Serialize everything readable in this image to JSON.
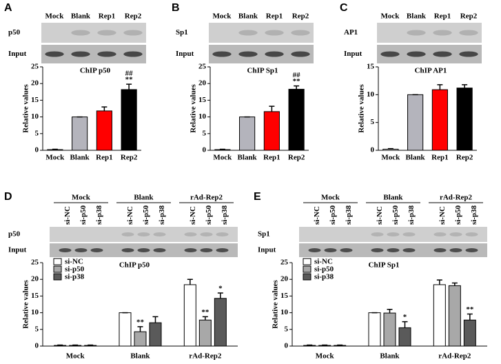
{
  "chart_data": [
    {
      "type": "bar",
      "panel": "A",
      "title": "ChIP p50",
      "y_label": "Relative values",
      "gel": {
        "lanes": [
          "Mock",
          "Blank",
          "Rep1",
          "Rep2"
        ],
        "rows": [
          "p50",
          "Input"
        ]
      },
      "categories": [
        "Mock",
        "Blank",
        "Rep1",
        "Rep2"
      ],
      "values": [
        0.2,
        10,
        11.8,
        18.2
      ],
      "errors": [
        0.1,
        0,
        1.2,
        1.6
      ],
      "colors": [
        "#ffffff",
        "#b4b4bc",
        "#ff0000",
        "#000000"
      ],
      "annotations": [
        null,
        null,
        null,
        [
          "##",
          "**"
        ]
      ],
      "ylim": [
        0,
        25
      ],
      "yticks": [
        0,
        5,
        10,
        15,
        20,
        25
      ]
    },
    {
      "type": "bar",
      "panel": "B",
      "title": "ChIP Sp1",
      "y_label": "Relative values",
      "gel": {
        "lanes": [
          "Mock",
          "Blank",
          "Rep1",
          "Rep2"
        ],
        "rows": [
          "Sp1",
          "Input"
        ]
      },
      "categories": [
        "Mock",
        "Blank",
        "Rep1",
        "Rep2"
      ],
      "values": [
        0.2,
        10,
        11.6,
        18.3
      ],
      "errors": [
        0.1,
        0,
        1.6,
        1.0
      ],
      "colors": [
        "#ffffff",
        "#b4b4bc",
        "#ff0000",
        "#000000"
      ],
      "annotations": [
        null,
        null,
        null,
        [
          "##",
          "**"
        ]
      ],
      "ylim": [
        0,
        25
      ],
      "yticks": [
        0,
        5,
        10,
        15,
        20,
        25
      ]
    },
    {
      "type": "bar",
      "panel": "C",
      "title": "ChIP AP1",
      "y_label": "Relative values",
      "gel": {
        "lanes": [
          "Mock",
          "Blank",
          "Rep1",
          "Rep2"
        ],
        "rows": [
          "AP1",
          "Input"
        ]
      },
      "categories": [
        "Mock",
        "Blank",
        "Rep1",
        "Rep2"
      ],
      "values": [
        0.2,
        10,
        10.9,
        11.2
      ],
      "errors": [
        0.1,
        0,
        0.9,
        0.6
      ],
      "colors": [
        "#ffffff",
        "#b4b4bc",
        "#ff0000",
        "#000000"
      ],
      "ylim": [
        0,
        15
      ],
      "yticks": [
        0,
        5,
        10,
        15
      ]
    },
    {
      "type": "grouped_bar",
      "panel": "D",
      "title": "ChIP p50",
      "y_label": "Relative values",
      "gel": {
        "groups": [
          "Mock",
          "Blank",
          "rAd-Rep2"
        ],
        "lanes": [
          "si-NC",
          "si-p50",
          "si-p38",
          "si-NC",
          "si-p50",
          "si-p38",
          "si-NC",
          "si-p50",
          "si-p38"
        ],
        "rows": [
          "p50",
          "Input"
        ]
      },
      "categories": [
        "Mock",
        "Blank",
        "rAd-Rep2"
      ],
      "series": [
        {
          "name": "si-NC",
          "color": "#ffffff",
          "values": [
            0.2,
            10,
            18.4
          ],
          "errors": [
            0.1,
            0,
            1.6
          ]
        },
        {
          "name": "si-p50",
          "color": "#a8a8a8",
          "values": [
            0.2,
            4.3,
            7.8
          ],
          "errors": [
            0.1,
            1.5,
            1.0
          ],
          "annotations": [
            null,
            [
              "**"
            ],
            [
              "**"
            ]
          ]
        },
        {
          "name": "si-p38",
          "color": "#5a5a5a",
          "values": [
            0.2,
            7,
            14.3
          ],
          "errors": [
            0.1,
            1.8,
            1.6
          ],
          "annotations": [
            null,
            null,
            [
              "*"
            ]
          ]
        }
      ],
      "ylim": [
        0,
        25
      ],
      "yticks": [
        0,
        5,
        10,
        15,
        20,
        25
      ]
    },
    {
      "type": "grouped_bar",
      "panel": "E",
      "title": "ChIP Sp1",
      "y_label": "Relative values",
      "gel": {
        "groups": [
          "Mock",
          "Blank",
          "rAd-Rep2"
        ],
        "lanes": [
          "si-NC",
          "si-p50",
          "si-p38",
          "si-NC",
          "si-p50",
          "si-p38",
          "si-NC",
          "si-p50",
          "si-p38"
        ],
        "rows": [
          "Sp1",
          "Input"
        ]
      },
      "categories": [
        "Mock",
        "Blank",
        "rAd-Rep2"
      ],
      "series": [
        {
          "name": "si-NC",
          "color": "#ffffff",
          "values": [
            0.2,
            10,
            18.4
          ],
          "errors": [
            0.1,
            0,
            1.4
          ]
        },
        {
          "name": "si-p50",
          "color": "#a8a8a8",
          "values": [
            0.2,
            9.9,
            18.1
          ],
          "errors": [
            0.1,
            1.1,
            0.8
          ]
        },
        {
          "name": "si-p38",
          "color": "#5a5a5a",
          "values": [
            0.2,
            5.5,
            7.8
          ],
          "errors": [
            0.1,
            1.8,
            1.8
          ],
          "annotations": [
            null,
            [
              "*"
            ],
            [
              "**"
            ]
          ]
        }
      ],
      "ylim": [
        0,
        25
      ],
      "yticks": [
        0,
        5,
        10,
        15,
        20,
        25
      ]
    }
  ]
}
